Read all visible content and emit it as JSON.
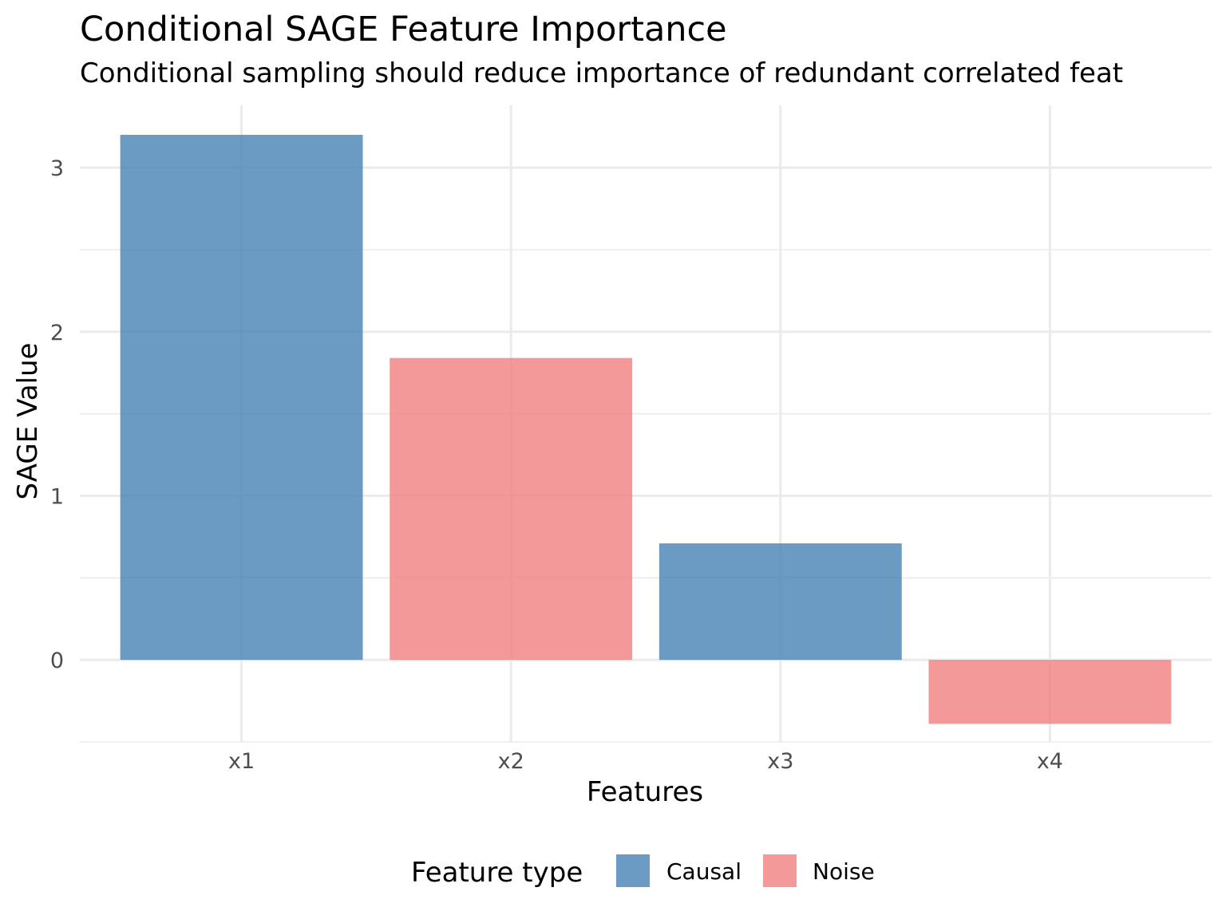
{
  "chart_data": {
    "type": "bar",
    "title": "Conditional SAGE Feature Importance",
    "subtitle": "Conditional sampling should reduce importance of redundant correlated feat",
    "xlabel": "Features",
    "ylabel": "SAGE Value",
    "categories": [
      "x1",
      "x2",
      "x3",
      "x4"
    ],
    "values": [
      3.2,
      1.84,
      0.71,
      -0.39
    ],
    "groups": [
      "Causal",
      "Noise",
      "Causal",
      "Noise"
    ],
    "ylim": [
      -0.5,
      3.38
    ],
    "y_ticks": [
      0,
      1,
      2,
      3
    ],
    "y_tick_labels": [
      "0",
      "1",
      "2",
      "3"
    ],
    "grid": true,
    "legend": {
      "title": "Feature type",
      "placement": "bottom",
      "entries": [
        {
          "label": "Causal",
          "color": "#4682B4"
        },
        {
          "label": "Noise",
          "color": "#F08080"
        }
      ]
    },
    "colors": {
      "Causal": "#4682B4",
      "Noise": "#F08080",
      "grid": "#EBEBEB"
    }
  }
}
